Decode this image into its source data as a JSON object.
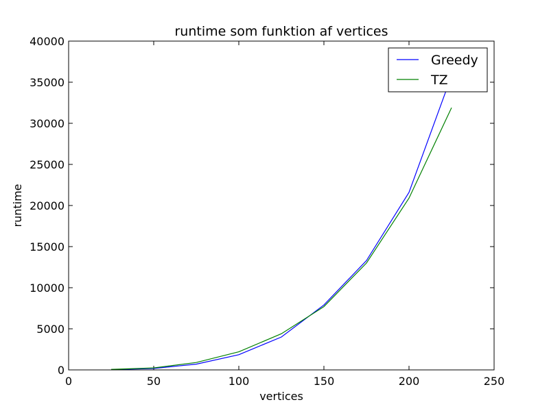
{
  "chart_data": {
    "type": "line",
    "title": "runtime som funktion af vertices",
    "xlabel": "vertices",
    "ylabel": "runtime",
    "xlim": [
      0,
      250
    ],
    "ylim": [
      0,
      40000
    ],
    "xticks": [
      0,
      50,
      100,
      150,
      200,
      250
    ],
    "yticks": [
      0,
      5000,
      10000,
      15000,
      20000,
      25000,
      30000,
      35000,
      40000
    ],
    "grid": false,
    "legend_position": "top-right",
    "x": [
      25,
      50,
      75,
      100,
      125,
      150,
      175,
      200,
      225
    ],
    "series": [
      {
        "name": "Greedy",
        "color": "#0000ff",
        "values": [
          30,
          180,
          700,
          1850,
          4000,
          7900,
          13300,
          21600,
          35800
        ]
      },
      {
        "name": "TZ",
        "color": "#008000",
        "values": [
          60,
          240,
          900,
          2200,
          4400,
          7700,
          13000,
          20900,
          31900
        ]
      }
    ]
  }
}
